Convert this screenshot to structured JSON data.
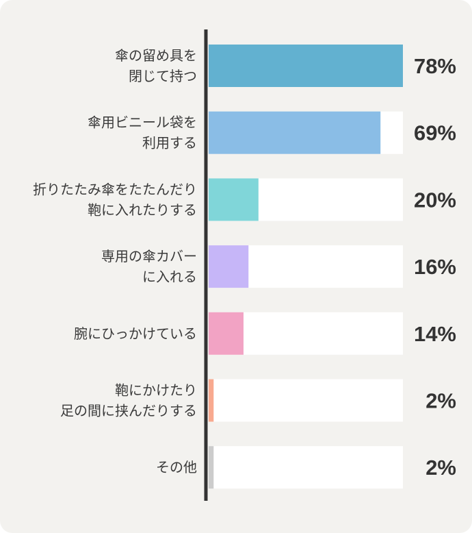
{
  "chart_data": {
    "type": "bar",
    "orientation": "horizontal",
    "categories": [
      [
        "傘の留め具を",
        "閉じて持つ"
      ],
      [
        "傘用ビニール袋を",
        "利用する"
      ],
      [
        "折りたたみ傘をたたんだり",
        "鞄に入れたりする"
      ],
      [
        "専用の傘カバー",
        "に入れる"
      ],
      [
        "腕にひっかけている"
      ],
      [
        "鞄にかけたり",
        "足の間に挟んだりする"
      ],
      [
        "その他"
      ]
    ],
    "values": [
      78,
      69,
      20,
      16,
      14,
      2,
      2
    ],
    "value_labels": [
      "78%",
      "69%",
      "20%",
      "16%",
      "14%",
      "2%",
      "2%"
    ],
    "colors": [
      "#62b1d0",
      "#8abde6",
      "#80d6d9",
      "#c6b6f8",
      "#f2a3c4",
      "#f8a98f",
      "#cccccc"
    ],
    "xlim": [
      0,
      78
    ],
    "title": "",
    "xlabel": "",
    "ylabel": "",
    "grid": false,
    "legend": "none"
  }
}
